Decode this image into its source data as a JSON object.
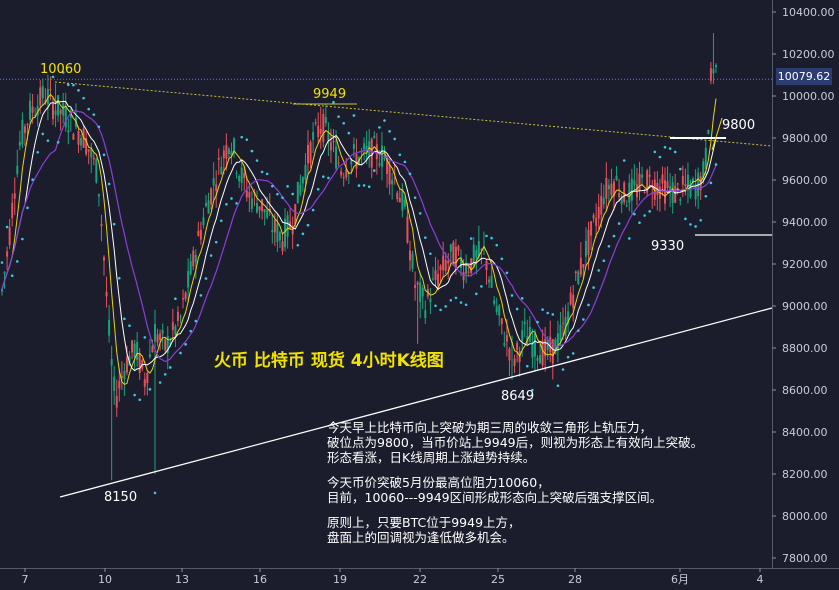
{
  "chart_data": {
    "type": "candlestick",
    "title": "火币 比特币 现货 4小时K线图",
    "y_ticks": [
      7800,
      8000,
      8200,
      8400,
      8600,
      8800,
      9000,
      9200,
      9400,
      9600,
      9800,
      10000,
      10200,
      10400
    ],
    "y_tick_labels": [
      "7800.00",
      "8000.00",
      "8200.00",
      "8400.00",
      "8600.00",
      "8800.00",
      "9000.00",
      "9200.00",
      "9400.00",
      "9600.00",
      "9800.00",
      "10000.00",
      "10200.00",
      "10400.00"
    ],
    "ylim": [
      7700,
      10450
    ],
    "x_ticks": [
      "7",
      "10",
      "13",
      "16",
      "19",
      "22",
      "25",
      "28",
      "6月",
      "4"
    ],
    "current_price": 10079.62,
    "current_price_label": "10079.62",
    "annotations": [
      {
        "text": "10060",
        "value": 10060
      },
      {
        "text": "9949",
        "value": 9949
      },
      {
        "text": "9800",
        "value": 9800
      },
      {
        "text": "9330",
        "value": 9330
      },
      {
        "text": "8649",
        "value": 8649
      },
      {
        "text": "8150",
        "value": 8150
      }
    ],
    "colors": {
      "up": "#1aa37a",
      "down": "#e5525a",
      "ma_fast": "#e8d21a",
      "ma_mid": "#ffffff",
      "ma_slow": "#8a3fd8",
      "sar": "#3fc6e0",
      "trend": "#ffffff",
      "resistance": "#c8c23a"
    }
  },
  "text_block": {
    "p1_l1": "今天早上比特币向上突破为期三周的收敛三角形上轨压力，",
    "p1_l2": "破位点为9800，当币价站上9949后，则视为形态上有效向上突破。",
    "p1_l3": "形态看涨，日K线周期上涨趋势持续。",
    "p2_l1": "今天币价突破5月份最高位阻力10060，",
    "p2_l2": "目前，10060---9949区间形成形态向上突破后强支撑区间。",
    "p3_l1": "原则上，只要BTC位于9949上方，",
    "p3_l2": "盘面上的回调视为逢低做多机会。"
  }
}
